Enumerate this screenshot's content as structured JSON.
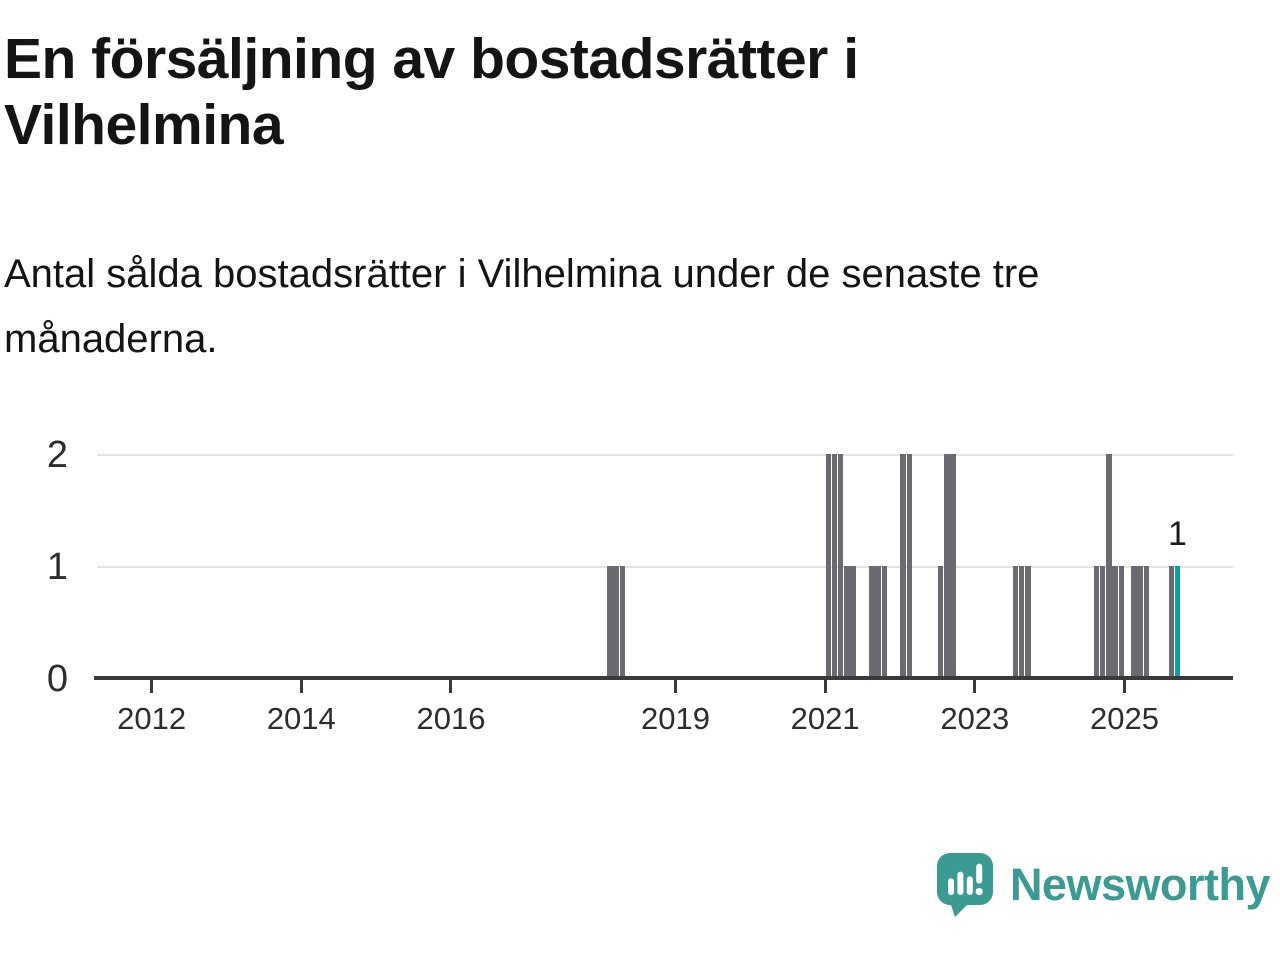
{
  "header": {
    "title": "En försäljning av bostadsrätter i Vilhelmina",
    "subtitle": "Antal sålda bostadsrätter i Vilhelmina under de senaste tre månaderna."
  },
  "chart_data": {
    "type": "bar",
    "title": "En försäljning av bostadsrätter i Vilhelmina",
    "subtitle": "Antal sålda bostadsrätter i Vilhelmina under de senaste tre månaderna.",
    "xlabel": "",
    "ylabel": "",
    "ylim": [
      0,
      2
    ],
    "yticks": [
      0,
      1,
      2
    ],
    "xticks": [
      2012,
      2014,
      2016,
      2019,
      2021,
      2023,
      2025
    ],
    "x_range": [
      2011.27,
      2026.45
    ],
    "grid": "horizontal",
    "legend": "none",
    "bars": [
      {
        "month": "2018-02",
        "value": 1
      },
      {
        "month": "2018-03",
        "value": 1
      },
      {
        "month": "2018-04",
        "value": 1
      },
      {
        "month": "2021-01",
        "value": 2
      },
      {
        "month": "2021-02",
        "value": 2
      },
      {
        "month": "2021-03",
        "value": 2
      },
      {
        "month": "2021-04",
        "value": 1
      },
      {
        "month": "2021-05",
        "value": 1
      },
      {
        "month": "2021-08",
        "value": 1
      },
      {
        "month": "2021-09",
        "value": 1
      },
      {
        "month": "2021-10",
        "value": 1
      },
      {
        "month": "2022-01",
        "value": 2
      },
      {
        "month": "2022-02",
        "value": 2
      },
      {
        "month": "2022-07",
        "value": 1
      },
      {
        "month": "2022-08",
        "value": 2
      },
      {
        "month": "2022-09",
        "value": 2
      },
      {
        "month": "2023-07",
        "value": 1
      },
      {
        "month": "2023-08",
        "value": 1
      },
      {
        "month": "2023-09",
        "value": 1
      },
      {
        "month": "2024-08",
        "value": 1
      },
      {
        "month": "2024-09",
        "value": 1
      },
      {
        "month": "2024-10",
        "value": 2
      },
      {
        "month": "2024-11",
        "value": 1
      },
      {
        "month": "2024-12",
        "value": 1
      },
      {
        "month": "2025-02",
        "value": 1
      },
      {
        "month": "2025-03",
        "value": 1
      },
      {
        "month": "2025-04",
        "value": 1
      },
      {
        "month": "2025-08",
        "value": 1
      },
      {
        "month": "2025-09",
        "value": 1,
        "highlight": true,
        "label": "1"
      }
    ],
    "colors": {
      "bar": "#6a6a70",
      "highlight": "#0fa0a0",
      "axis": "#3a3a3a",
      "gridline": "#e2e2e2",
      "tick_label": "#2d2d2d",
      "data_label": "#1a1a1a"
    }
  },
  "footer": {
    "brand": "Newsworthy",
    "logo_color": "#3b9b93"
  }
}
